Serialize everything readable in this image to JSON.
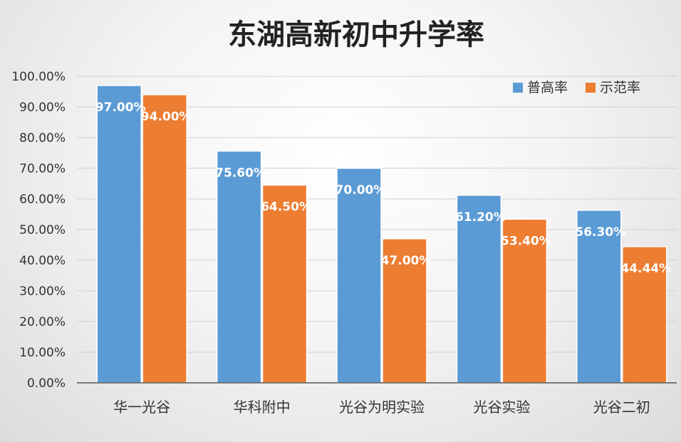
{
  "chart_data": {
    "type": "bar",
    "title": "东湖高新初中升学率",
    "categories": [
      "华一光谷",
      "华科附中",
      "光谷为明实验",
      "光谷实验",
      "光谷二初"
    ],
    "series": [
      {
        "name": "普高率",
        "color": "#5b9bd5",
        "values": [
          97.0,
          75.6,
          70.0,
          61.2,
          56.3
        ],
        "labels": [
          "97.00%",
          "75.60%",
          "70.00%",
          "61.20%",
          "56.30%"
        ]
      },
      {
        "name": "示范率",
        "color": "#ed7d31",
        "values": [
          94.0,
          64.5,
          47.0,
          53.4,
          44.44
        ],
        "labels": [
          "94.00%",
          "64.50%",
          "47.00%",
          "53.40%",
          "44.44%"
        ]
      }
    ],
    "ylim": [
      0,
      100
    ],
    "yticks": [
      "0.00%",
      "10.00%",
      "20.00%",
      "30.00%",
      "40.00%",
      "50.00%",
      "60.00%",
      "70.00%",
      "80.00%",
      "90.00%",
      "100.00%"
    ],
    "xlabel": "",
    "ylabel": "",
    "grid": true,
    "legend": "top-right"
  }
}
